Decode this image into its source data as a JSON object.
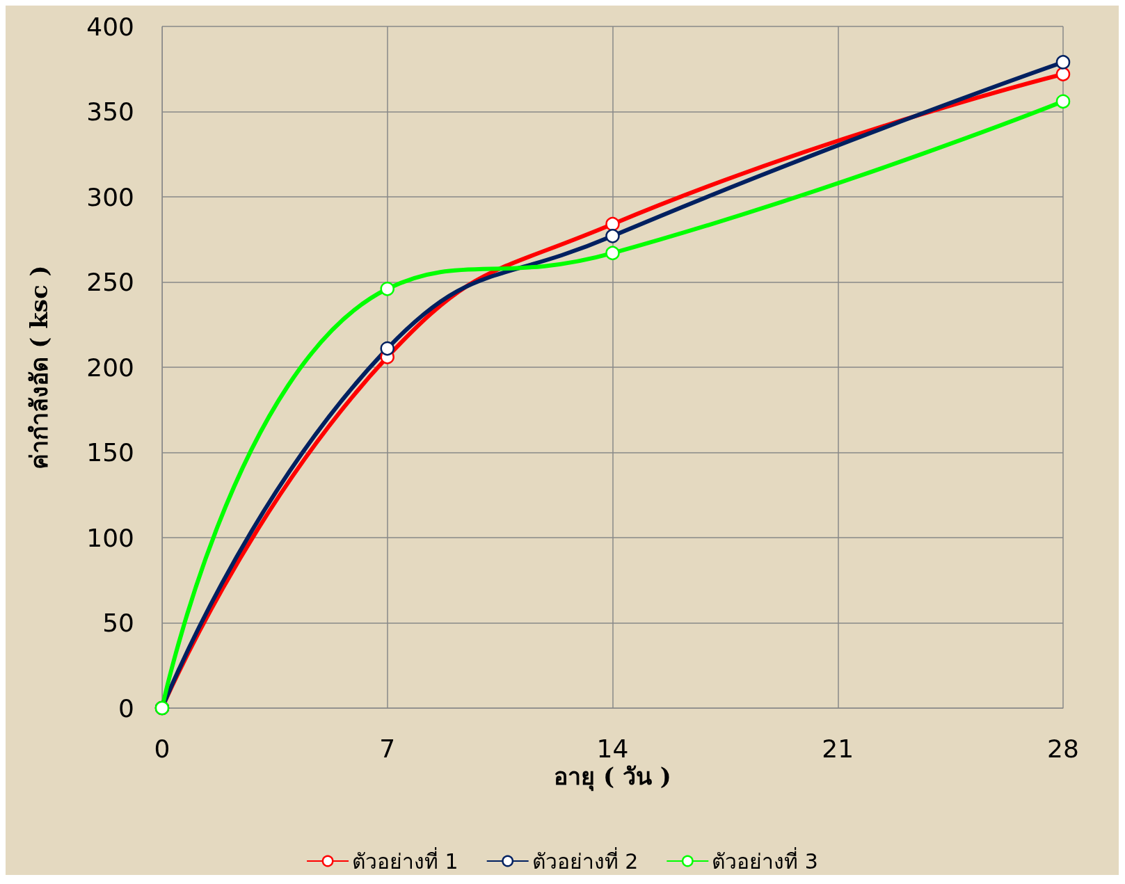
{
  "chart_data": {
    "type": "line",
    "xlabel": "อายุ ( วัน )",
    "ylabel": "ค่ากำลังอัด ( ksc )",
    "x": [
      0,
      7,
      14,
      28
    ],
    "series": [
      {
        "name": "ตัวอย่างที่ 1",
        "color": "#ff0000",
        "values": [
          0,
          206,
          284,
          372
        ]
      },
      {
        "name": "ตัวอย่างที่ 2",
        "color": "#002060",
        "values": [
          0,
          211,
          277,
          379
        ]
      },
      {
        "name": "ตัวอย่างที่ 3",
        "color": "#00ff00",
        "values": [
          0,
          246,
          267,
          356
        ]
      }
    ],
    "xlim": [
      0,
      28
    ],
    "xticks": [
      0,
      7,
      14,
      21,
      28
    ],
    "ylim": [
      0,
      400
    ],
    "yticks": [
      0,
      50,
      100,
      150,
      200,
      250,
      300,
      350,
      400
    ],
    "grid": true,
    "legend": "bottom",
    "marker": "circle",
    "line_style": "solid"
  }
}
